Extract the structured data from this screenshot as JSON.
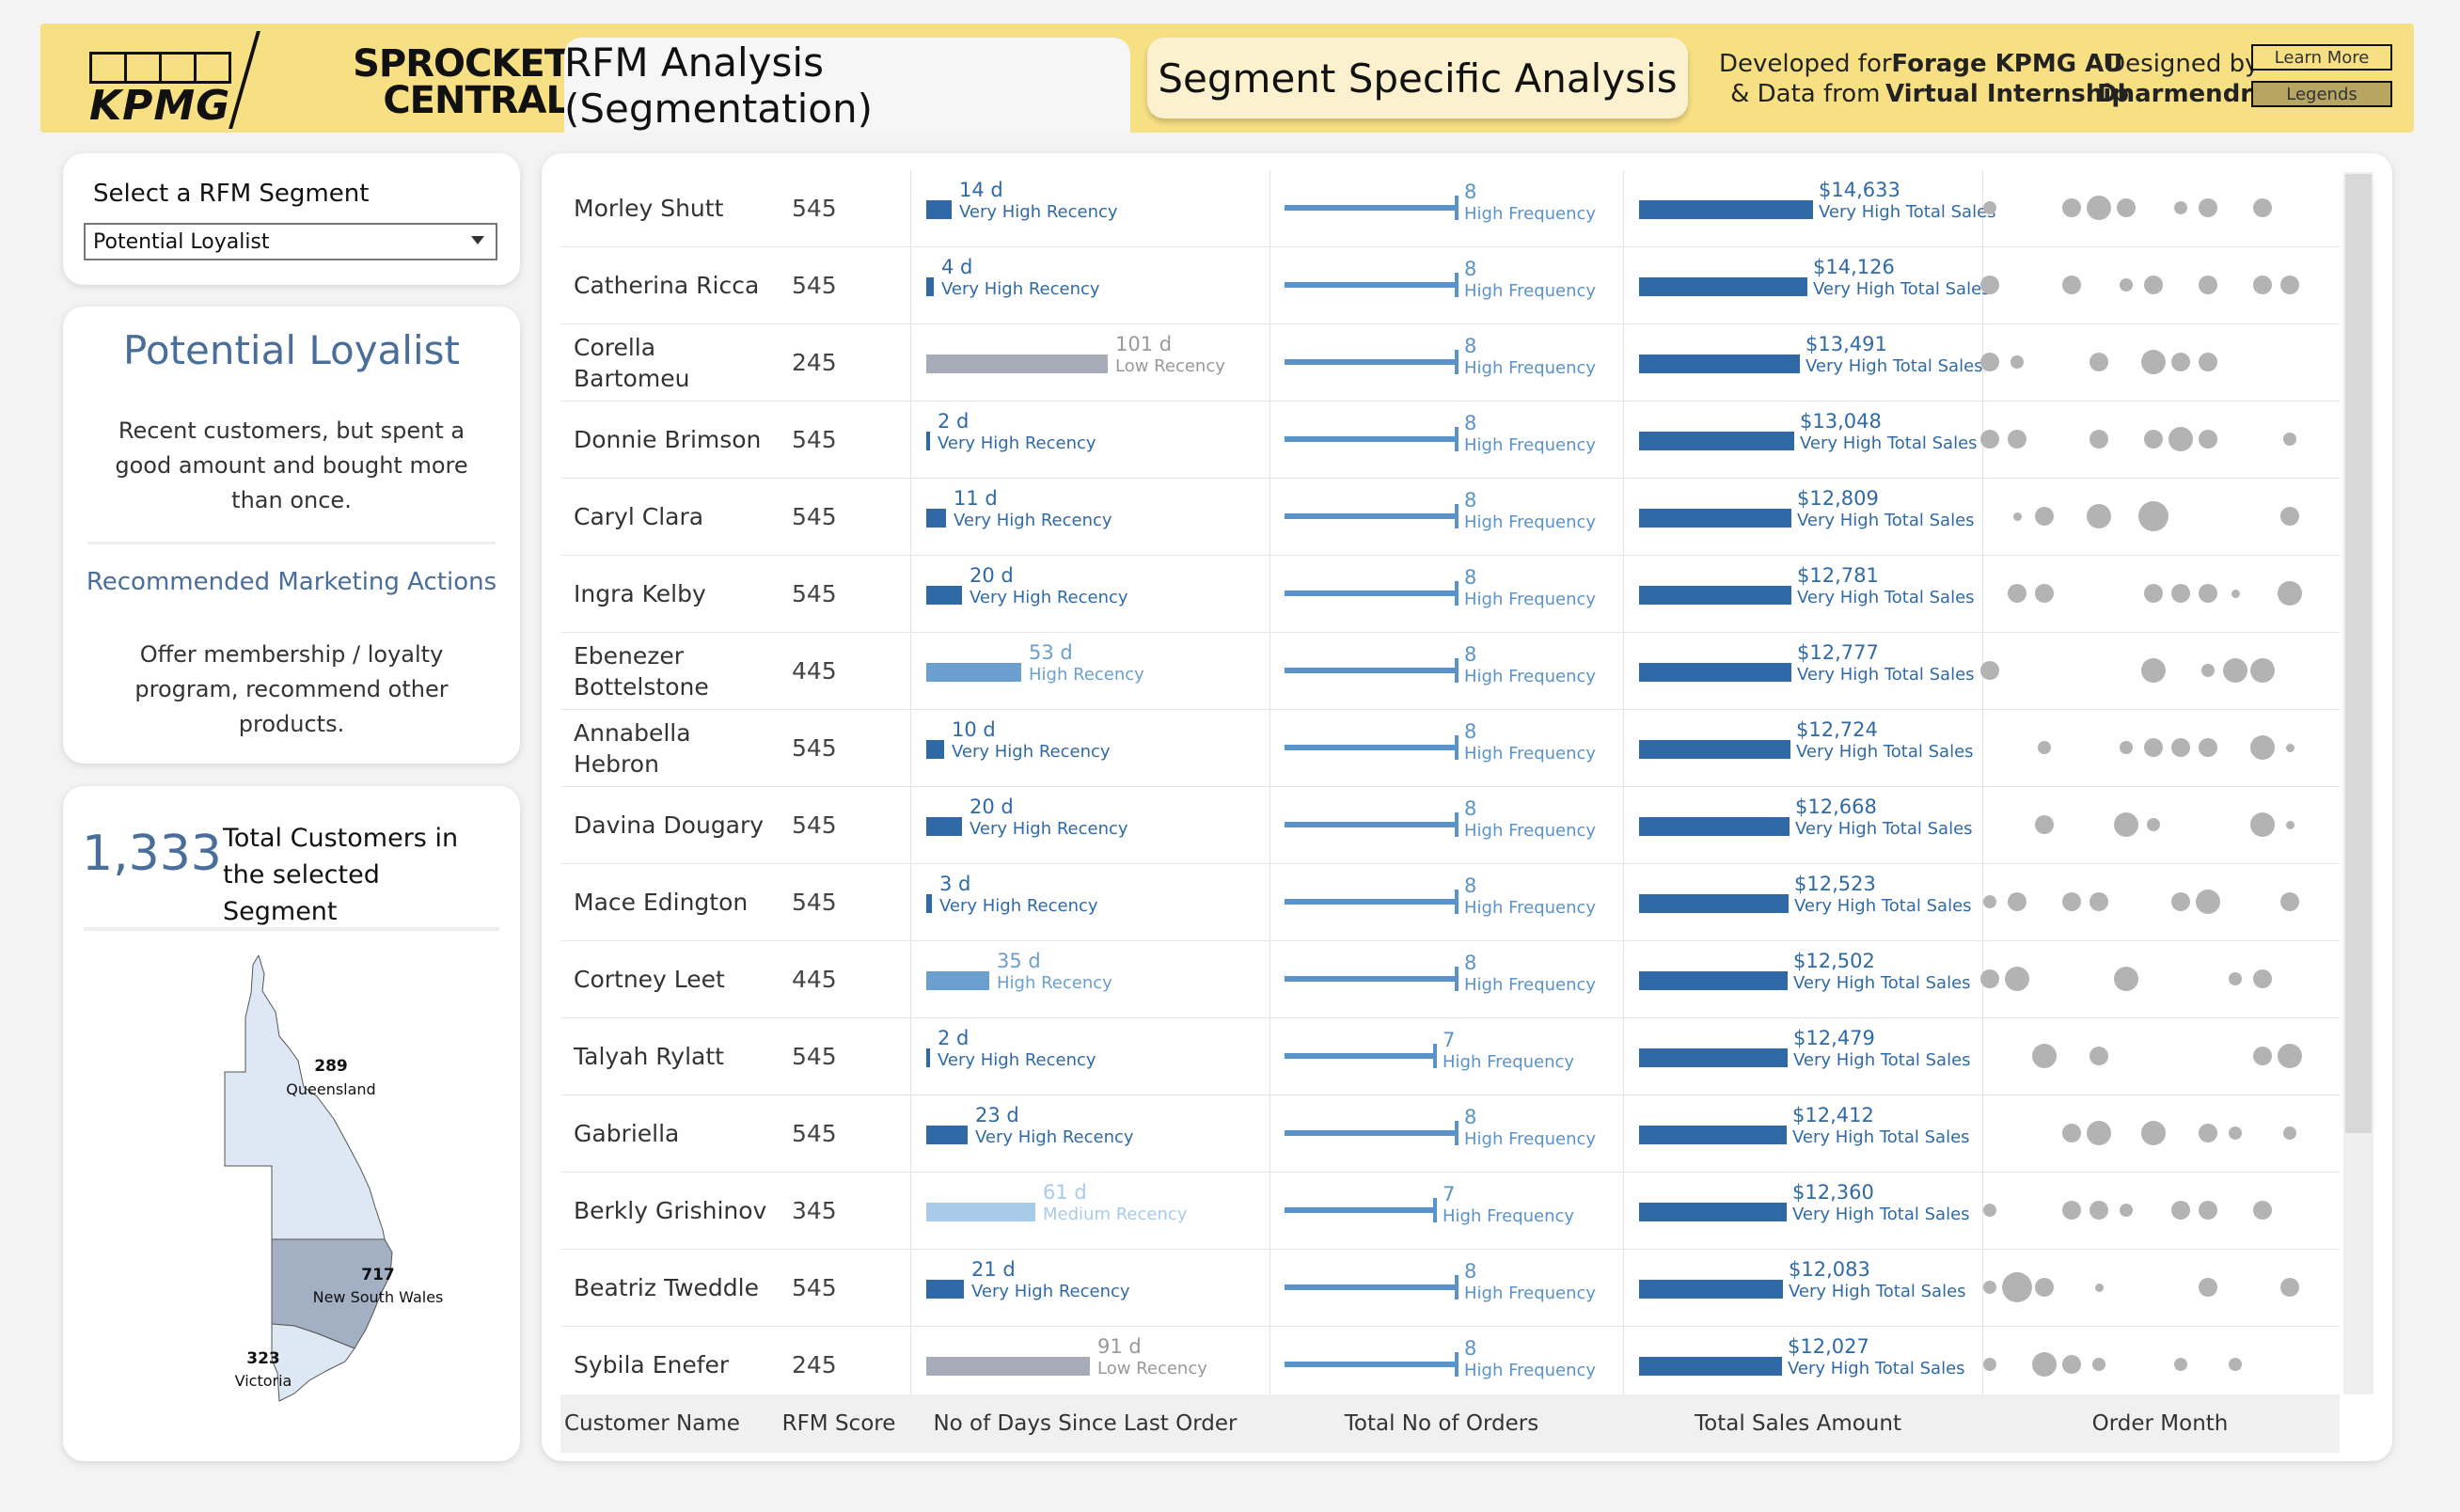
{
  "header": {
    "kpmg_logo": "KPMG",
    "sprocket_logo_line1": "SPROCKET",
    "sprocket_logo_line2": "CENTRAL",
    "tab_active": "RFM Analysis (Segmentation)",
    "tab_inactive": "Segment Specific Analysis",
    "developed_for_line1": "Developed for",
    "developed_for_line2": "& Data from",
    "forage_line1": "Forage KPMG AU",
    "forage_line2": "Virtual Internship",
    "designed_by": "Designed by",
    "designer": "Dharmendra",
    "learn_more": "Learn More",
    "legends": "Legends"
  },
  "segment": {
    "label": "Select a RFM Segment",
    "selected": "Potential Loyalist"
  },
  "description": {
    "title": "Potential Loyalist",
    "body": "Recent customers, but spent a good amount and bought more than once.",
    "actions_title": "Recommended Marketing Actions",
    "actions_body": "Offer membership / loyalty program, recommend other products."
  },
  "totals": {
    "count": "1,333",
    "label": "Total Customers in the selected Segment"
  },
  "map": {
    "states": [
      {
        "name": "Queensland",
        "count": "289",
        "color": "#dde8f4"
      },
      {
        "name": "New South Wales",
        "count": "717",
        "color": "#a3afc3"
      },
      {
        "name": "Victoria",
        "count": "323",
        "color": "#dde8f4"
      }
    ]
  },
  "columns": {
    "customer_name": "Customer Name",
    "rfm_score": "RFM Score",
    "days_since": "No of Days Since Last Order",
    "total_orders": "Total No of Orders",
    "total_sales": "Total Sales Amount",
    "order_month": "Order Month"
  },
  "colors": {
    "very_high": "#2f6aa7",
    "high": "#6a9fd0",
    "medium": "#a9cbe9",
    "low": "#a7acb8",
    "freq": "#5a93c9",
    "sales": "#2f6aa7",
    "dot": "#b3b3b3"
  },
  "rows": [
    {
      "name": "Morley Shutt",
      "score": "545",
      "days": 14,
      "days_label": "14 d",
      "recency": "Very High Recency",
      "rlevel": "very_high",
      "orders": 8,
      "orders_label": "8",
      "freq": "High Frequency",
      "sales": 14633,
      "sales_label": "$14,633",
      "sales_cat": "Very High Total Sales",
      "dots": [
        [
          0,
          1
        ],
        [
          3,
          2
        ],
        [
          4,
          3
        ],
        [
          5,
          2
        ],
        [
          7,
          1
        ],
        [
          8,
          2
        ],
        [
          10,
          2
        ]
      ]
    },
    {
      "name": "Catherina Ricca",
      "score": "545",
      "days": 4,
      "days_label": "4 d",
      "recency": "Very High Recency",
      "rlevel": "very_high",
      "orders": 8,
      "orders_label": "8",
      "freq": "High Frequency",
      "sales": 14126,
      "sales_label": "$14,126",
      "sales_cat": "Very High Total Sales",
      "dots": [
        [
          0,
          2
        ],
        [
          3,
          2
        ],
        [
          5,
          1
        ],
        [
          6,
          2
        ],
        [
          8,
          2
        ],
        [
          10,
          2
        ],
        [
          11,
          2
        ]
      ]
    },
    {
      "name": "Corella Bartomeu",
      "score": "245",
      "days": 101,
      "days_label": "101 d",
      "recency": "Low Recency",
      "rlevel": "low",
      "orders": 8,
      "orders_label": "8",
      "freq": "High Frequency",
      "sales": 13491,
      "sales_label": "$13,491",
      "sales_cat": "Very High Total Sales",
      "dots": [
        [
          0,
          2
        ],
        [
          1,
          1
        ],
        [
          4,
          2
        ],
        [
          6,
          3
        ],
        [
          7,
          2
        ],
        [
          8,
          2
        ]
      ]
    },
    {
      "name": "Donnie Brimson",
      "score": "545",
      "days": 2,
      "days_label": "2 d",
      "recency": "Very High Recency",
      "rlevel": "very_high",
      "orders": 8,
      "orders_label": "8",
      "freq": "High Frequency",
      "sales": 13048,
      "sales_label": "$13,048",
      "sales_cat": "Very High Total Sales",
      "dots": [
        [
          0,
          2
        ],
        [
          1,
          2
        ],
        [
          4,
          2
        ],
        [
          6,
          2
        ],
        [
          7,
          3
        ],
        [
          8,
          2
        ],
        [
          11,
          1
        ]
      ]
    },
    {
      "name": "Caryl Clara",
      "score": "545",
      "days": 11,
      "days_label": "11 d",
      "recency": "Very High Recency",
      "rlevel": "very_high",
      "orders": 8,
      "orders_label": "8",
      "freq": "High Frequency",
      "sales": 12809,
      "sales_label": "$12,809",
      "sales_cat": "Very High Total Sales",
      "dots": [
        [
          1,
          0
        ],
        [
          2,
          2
        ],
        [
          4,
          3
        ],
        [
          6,
          4
        ],
        [
          11,
          2
        ]
      ]
    },
    {
      "name": "Ingra Kelby",
      "score": "545",
      "days": 20,
      "days_label": "20 d",
      "recency": "Very High Recency",
      "rlevel": "very_high",
      "orders": 8,
      "orders_label": "8",
      "freq": "High Frequency",
      "sales": 12781,
      "sales_label": "$12,781",
      "sales_cat": "Very High Total Sales",
      "dots": [
        [
          1,
          2
        ],
        [
          2,
          2
        ],
        [
          6,
          2
        ],
        [
          7,
          2
        ],
        [
          8,
          2
        ],
        [
          9,
          0
        ],
        [
          11,
          3
        ]
      ]
    },
    {
      "name": "Ebenezer Bottelstone",
      "score": "445",
      "days": 53,
      "days_label": "53 d",
      "recency": "High Recency",
      "rlevel": "high",
      "orders": 8,
      "orders_label": "8",
      "freq": "High Frequency",
      "sales": 12777,
      "sales_label": "$12,777",
      "sales_cat": "Very High Total Sales",
      "dots": [
        [
          0,
          2
        ],
        [
          6,
          3
        ],
        [
          8,
          1
        ],
        [
          9,
          3
        ],
        [
          10,
          3
        ]
      ]
    },
    {
      "name": "Annabella Hebron",
      "score": "545",
      "days": 10,
      "days_label": "10 d",
      "recency": "Very High Recency",
      "rlevel": "very_high",
      "orders": 8,
      "orders_label": "8",
      "freq": "High Frequency",
      "sales": 12724,
      "sales_label": "$12,724",
      "sales_cat": "Very High Total Sales",
      "dots": [
        [
          2,
          1
        ],
        [
          5,
          1
        ],
        [
          6,
          2
        ],
        [
          7,
          2
        ],
        [
          8,
          2
        ],
        [
          10,
          3
        ],
        [
          11,
          0
        ]
      ]
    },
    {
      "name": "Davina Dougary",
      "score": "545",
      "days": 20,
      "days_label": "20 d",
      "recency": "Very High Recency",
      "rlevel": "very_high",
      "orders": 8,
      "orders_label": "8",
      "freq": "High Frequency",
      "sales": 12668,
      "sales_label": "$12,668",
      "sales_cat": "Very High Total Sales",
      "dots": [
        [
          2,
          2
        ],
        [
          5,
          3
        ],
        [
          6,
          1
        ],
        [
          10,
          3
        ],
        [
          11,
          0
        ]
      ]
    },
    {
      "name": "Mace Edington",
      "score": "545",
      "days": 3,
      "days_label": "3 d",
      "recency": "Very High Recency",
      "rlevel": "very_high",
      "orders": 8,
      "orders_label": "8",
      "freq": "High Frequency",
      "sales": 12523,
      "sales_label": "$12,523",
      "sales_cat": "Very High Total Sales",
      "dots": [
        [
          0,
          1
        ],
        [
          1,
          2
        ],
        [
          3,
          2
        ],
        [
          4,
          2
        ],
        [
          7,
          2
        ],
        [
          8,
          3
        ],
        [
          11,
          2
        ]
      ]
    },
    {
      "name": "Cortney Leet",
      "score": "445",
      "days": 35,
      "days_label": "35 d",
      "recency": "High Recency",
      "rlevel": "high",
      "orders": 8,
      "orders_label": "8",
      "freq": "High Frequency",
      "sales": 12502,
      "sales_label": "$12,502",
      "sales_cat": "Very High Total Sales",
      "dots": [
        [
          0,
          2
        ],
        [
          1,
          3
        ],
        [
          5,
          3
        ],
        [
          9,
          1
        ],
        [
          10,
          2
        ]
      ]
    },
    {
      "name": "Talyah Rylatt",
      "score": "545",
      "days": 2,
      "days_label": "2 d",
      "recency": "Very High Recency",
      "rlevel": "very_high",
      "orders": 7,
      "orders_label": "7",
      "freq": "High Frequency",
      "sales": 12479,
      "sales_label": "$12,479",
      "sales_cat": "Very High Total Sales",
      "dots": [
        [
          2,
          3
        ],
        [
          4,
          2
        ],
        [
          10,
          2
        ],
        [
          11,
          3
        ]
      ]
    },
    {
      "name": "Gabriella",
      "score": "545",
      "days": 23,
      "days_label": "23 d",
      "recency": "Very High Recency",
      "rlevel": "very_high",
      "orders": 8,
      "orders_label": "8",
      "freq": "High Frequency",
      "sales": 12412,
      "sales_label": "$12,412",
      "sales_cat": "Very High Total Sales",
      "dots": [
        [
          3,
          2
        ],
        [
          4,
          3
        ],
        [
          6,
          3
        ],
        [
          8,
          2
        ],
        [
          9,
          1
        ],
        [
          11,
          1
        ]
      ]
    },
    {
      "name": "Berkly Grishinov",
      "score": "345",
      "days": 61,
      "days_label": "61 d",
      "recency": "Medium Recency",
      "rlevel": "medium",
      "orders": 7,
      "orders_label": "7",
      "freq": "High Frequency",
      "sales": 12360,
      "sales_label": "$12,360",
      "sales_cat": "Very High Total Sales",
      "dots": [
        [
          0,
          1
        ],
        [
          3,
          2
        ],
        [
          4,
          2
        ],
        [
          5,
          1
        ],
        [
          7,
          2
        ],
        [
          8,
          2
        ],
        [
          10,
          2
        ]
      ]
    },
    {
      "name": "Beatriz Tweddle",
      "score": "545",
      "days": 21,
      "days_label": "21 d",
      "recency": "Very High Recency",
      "rlevel": "very_high",
      "orders": 8,
      "orders_label": "8",
      "freq": "High Frequency",
      "sales": 12083,
      "sales_label": "$12,083",
      "sales_cat": "Very High Total Sales",
      "dots": [
        [
          0,
          1
        ],
        [
          1,
          4
        ],
        [
          2,
          2
        ],
        [
          4,
          0
        ],
        [
          8,
          2
        ],
        [
          11,
          2
        ]
      ]
    },
    {
      "name": "Sybila Enefer",
      "score": "245",
      "days": 91,
      "days_label": "91 d",
      "recency": "Low Recency",
      "rlevel": "low",
      "orders": 8,
      "orders_label": "8",
      "freq": "High Frequency",
      "sales": 12027,
      "sales_label": "$12,027",
      "sales_cat": "Very High Total Sales",
      "dots": [
        [
          0,
          1
        ],
        [
          2,
          3
        ],
        [
          3,
          2
        ],
        [
          4,
          1
        ],
        [
          7,
          1
        ],
        [
          9,
          1
        ]
      ]
    }
  ]
}
